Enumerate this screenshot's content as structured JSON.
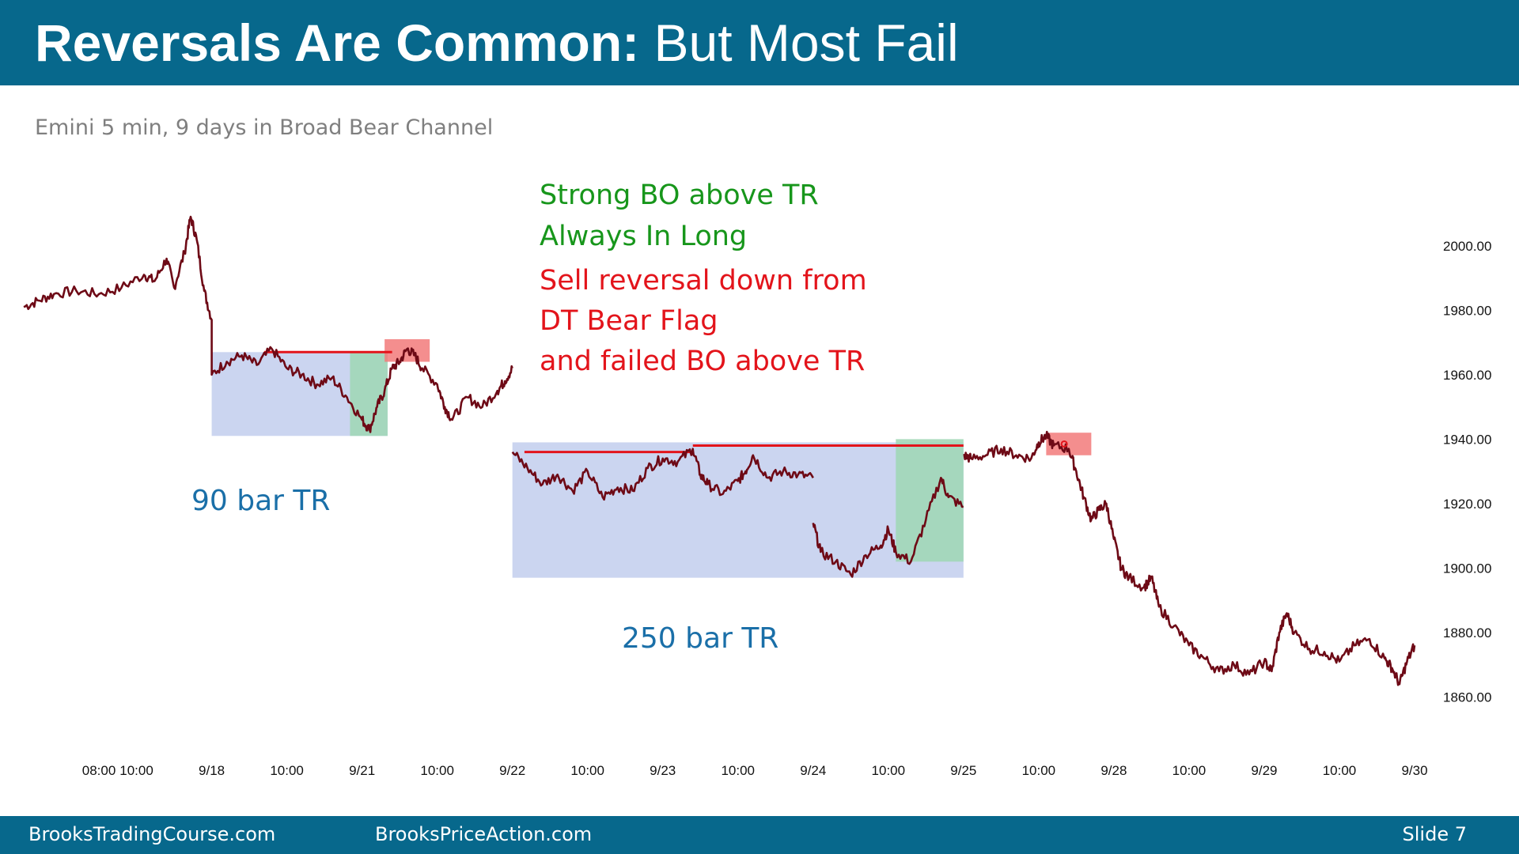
{
  "header": {
    "title_bold": "Reversals Are Common:",
    "title_rest": " But Most Fail"
  },
  "subtitle": "Emini 5 min, 9 days in Broad Bear Channel",
  "annotations": {
    "strong_bo": "Strong BO above TR",
    "always_in_long": "Always In Long",
    "sell_reversal_1": "Sell reversal down from",
    "sell_reversal_2": "DT Bear Flag",
    "sell_reversal_3": "and failed BO above TR",
    "tr_90": "90 bar TR",
    "tr_250": "250 bar TR"
  },
  "footer": {
    "left": "BrooksTradingCourse.com",
    "center": "BrooksPriceAction.com",
    "slide": "Slide  7"
  },
  "colors": {
    "header_bg": "#07688c",
    "price_line": "#6e0a16",
    "range_box": "#c8d3ef",
    "breakout_box": "#9fd7b4",
    "sell_zone": "#f27a7a",
    "resistance_line": "#e3141b"
  },
  "chart_data": {
    "type": "line",
    "ylim": [
      1853,
      2010
    ],
    "y_ticks": [
      "2000.00",
      "1980.00",
      "1960.00",
      "1940.00",
      "1920.00",
      "1900.00",
      "1880.00",
      "1860.00"
    ],
    "y_tick_values": [
      2000,
      1980,
      1960,
      1940,
      1920,
      1900,
      1880,
      1860
    ],
    "x_ticks": [
      "08:00",
      "10:00",
      "9/18",
      "10:00",
      "9/21",
      "10:00",
      "9/22",
      "10:00",
      "9/23",
      "10:00",
      "9/24",
      "10:00",
      "9/25",
      "10:00",
      "9/28",
      "10:00",
      "9/29",
      "10:00",
      "9/30"
    ],
    "x_tick_values": [
      0.25,
      0.5,
      1.0,
      1.5,
      2.0,
      2.5,
      3.0,
      3.5,
      4.0,
      4.5,
      5.0,
      5.5,
      6.0,
      6.5,
      7.0,
      7.5,
      8.0,
      8.5,
      9.0
    ],
    "xlim": [
      -0.25,
      9.0
    ],
    "series": [
      {
        "values": [
          [
            -0.25,
            1981
          ],
          [
            -0.15,
            1983
          ],
          [
            -0.05,
            1985
          ],
          [
            0.1,
            1986
          ],
          [
            0.25,
            1985
          ],
          [
            0.4,
            1987
          ],
          [
            0.55,
            1991
          ],
          [
            0.62,
            1989
          ],
          [
            0.7,
            1996
          ],
          [
            0.75,
            1987
          ],
          [
            0.82,
            1998
          ],
          [
            0.86,
            2009
          ],
          [
            0.9,
            2002
          ],
          [
            0.95,
            1986
          ],
          [
            1.0,
            1977
          ],
          [
            1.0,
            1970
          ],
          [
            1.0,
            1960
          ],
          [
            1.1,
            1964
          ],
          [
            1.2,
            1966
          ],
          [
            1.3,
            1963
          ],
          [
            1.4,
            1968
          ],
          [
            1.5,
            1962
          ],
          [
            1.6,
            1960
          ],
          [
            1.7,
            1957
          ],
          [
            1.8,
            1959
          ],
          [
            1.9,
            1953
          ],
          [
            2.0,
            1946
          ],
          [
            2.05,
            1943
          ],
          [
            2.1,
            1950
          ],
          [
            2.15,
            1955
          ],
          [
            2.2,
            1962
          ],
          [
            2.25,
            1964
          ],
          [
            2.3,
            1968
          ],
          [
            2.35,
            1966
          ],
          [
            2.4,
            1962
          ],
          [
            2.5,
            1957
          ],
          [
            2.55,
            1950
          ],
          [
            2.6,
            1946
          ],
          [
            2.7,
            1953
          ],
          [
            2.8,
            1950
          ],
          [
            2.9,
            1955
          ],
          [
            2.95,
            1958
          ],
          [
            3.0,
            1962
          ],
          [
            3.0,
            1936
          ],
          [
            3.1,
            1931
          ],
          [
            3.2,
            1926
          ],
          [
            3.3,
            1929
          ],
          [
            3.4,
            1924
          ],
          [
            3.5,
            1930
          ],
          [
            3.6,
            1922
          ],
          [
            3.7,
            1925
          ],
          [
            3.8,
            1924
          ],
          [
            3.9,
            1931
          ],
          [
            4.0,
            1934
          ],
          [
            4.1,
            1933
          ],
          [
            4.2,
            1937
          ],
          [
            4.25,
            1929
          ],
          [
            4.3,
            1926
          ],
          [
            4.4,
            1923
          ],
          [
            4.5,
            1927
          ],
          [
            4.55,
            1930
          ],
          [
            4.6,
            1935
          ],
          [
            4.7,
            1928
          ],
          [
            4.8,
            1930
          ],
          [
            4.9,
            1929
          ],
          [
            5.0,
            1928
          ],
          [
            5.0,
            1914
          ],
          [
            5.05,
            1905
          ],
          [
            5.15,
            1902
          ],
          [
            5.25,
            1898
          ],
          [
            5.35,
            1904
          ],
          [
            5.45,
            1907
          ],
          [
            5.5,
            1912
          ],
          [
            5.55,
            1905
          ],
          [
            5.65,
            1902
          ],
          [
            5.75,
            1915
          ],
          [
            5.85,
            1928
          ],
          [
            5.9,
            1922
          ],
          [
            6.0,
            1919
          ],
          [
            6.0,
            1935
          ],
          [
            6.05,
            1934
          ],
          [
            6.15,
            1935
          ],
          [
            6.25,
            1937
          ],
          [
            6.35,
            1935
          ],
          [
            6.45,
            1934
          ],
          [
            6.5,
            1939
          ],
          [
            6.55,
            1941
          ],
          [
            6.6,
            1938
          ],
          [
            6.7,
            1937
          ],
          [
            6.75,
            1930
          ],
          [
            6.8,
            1922
          ],
          [
            6.85,
            1915
          ],
          [
            6.9,
            1918
          ],
          [
            6.95,
            1920
          ],
          [
            7.0,
            1909
          ],
          [
            7.05,
            1900
          ],
          [
            7.1,
            1897
          ],
          [
            7.2,
            1894
          ],
          [
            7.25,
            1897
          ],
          [
            7.3,
            1888
          ],
          [
            7.4,
            1882
          ],
          [
            7.5,
            1876
          ],
          [
            7.6,
            1872
          ],
          [
            7.7,
            1868
          ],
          [
            7.8,
            1870
          ],
          [
            7.9,
            1867
          ],
          [
            8.0,
            1871
          ],
          [
            8.05,
            1868
          ],
          [
            8.1,
            1880
          ],
          [
            8.15,
            1886
          ],
          [
            8.2,
            1880
          ],
          [
            8.3,
            1875
          ],
          [
            8.4,
            1874
          ],
          [
            8.5,
            1871
          ],
          [
            8.6,
            1876
          ],
          [
            8.7,
            1878
          ],
          [
            8.8,
            1872
          ],
          [
            8.85,
            1869
          ],
          [
            8.9,
            1864
          ],
          [
            8.95,
            1871
          ],
          [
            9.0,
            1876
          ]
        ]
      }
    ],
    "ranges": [
      {
        "label": "90 bar TR",
        "x": [
          1.0,
          2.17
        ],
        "y": [
          1941,
          1967
        ]
      },
      {
        "label": "250 bar TR",
        "x": [
          3.0,
          6.0
        ],
        "y": [
          1897,
          1939
        ]
      }
    ],
    "breakout_zones": [
      {
        "x": [
          1.92,
          2.17
        ],
        "y": [
          1941,
          1967
        ]
      },
      {
        "x": [
          5.55,
          6.0
        ],
        "y": [
          1902,
          1940
        ]
      }
    ],
    "sell_zones": [
      {
        "x": [
          2.15,
          2.45
        ],
        "y": [
          1964,
          1971
        ]
      },
      {
        "x": [
          6.55,
          6.85
        ],
        "y": [
          1935,
          1942
        ]
      }
    ],
    "resistance_lines": [
      {
        "x": [
          1.35,
          2.2
        ],
        "y": 1967
      },
      {
        "x": [
          3.08,
          4.2
        ],
        "y": 1936
      },
      {
        "x": [
          4.2,
          6.0
        ],
        "y": 1938
      }
    ]
  }
}
